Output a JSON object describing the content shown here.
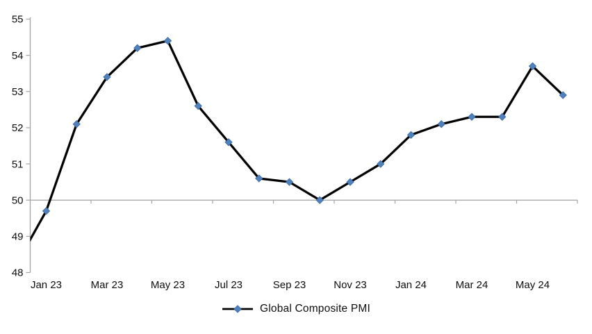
{
  "chart_data": {
    "type": "line",
    "title": "",
    "legend_label": "Global Composite PMI",
    "legend_position": "bottom-center",
    "categories": [
      "Dec 22",
      "Jan 23",
      "Feb 23",
      "Mar 23",
      "Apr 23",
      "May 23",
      "Jun 23",
      "Jul 23",
      "Aug 23",
      "Sep 23",
      "Oct 23",
      "Nov 23",
      "Dec 23",
      "Jan 24",
      "Feb 24",
      "Mar 24",
      "Apr 24",
      "May 24",
      "Jun 24"
    ],
    "series": [
      {
        "name": "Global Composite PMI",
        "values": [
          48.2,
          49.7,
          52.1,
          53.4,
          54.2,
          54.4,
          52.6,
          51.6,
          50.6,
          50.5,
          50.0,
          50.5,
          51.0,
          51.8,
          52.1,
          52.3,
          52.3,
          53.7,
          52.9
        ]
      }
    ],
    "x_tick_labels": [
      "Jan 23",
      "Mar 23",
      "May 23",
      "Jul 23",
      "Sep 23",
      "Nov 23",
      "Jan 24",
      "Mar 24",
      "May 24"
    ],
    "y_tick_labels": [
      "48",
      "49",
      "50",
      "51",
      "52",
      "53",
      "54",
      "55"
    ],
    "ylim": [
      48,
      55
    ],
    "y_tick_step": 1,
    "x_axis_crosses_at": 50,
    "grid": false,
    "first_point_clipped_at_left_axis": true,
    "marker_shape": "diamond",
    "colors": {
      "line": "#000000",
      "marker_fill": "#4f81bd",
      "marker_edge": "#3d6a9e",
      "axis": "#a3a3a3",
      "text": "#0d0d0d",
      "background": "#ffffff"
    }
  }
}
